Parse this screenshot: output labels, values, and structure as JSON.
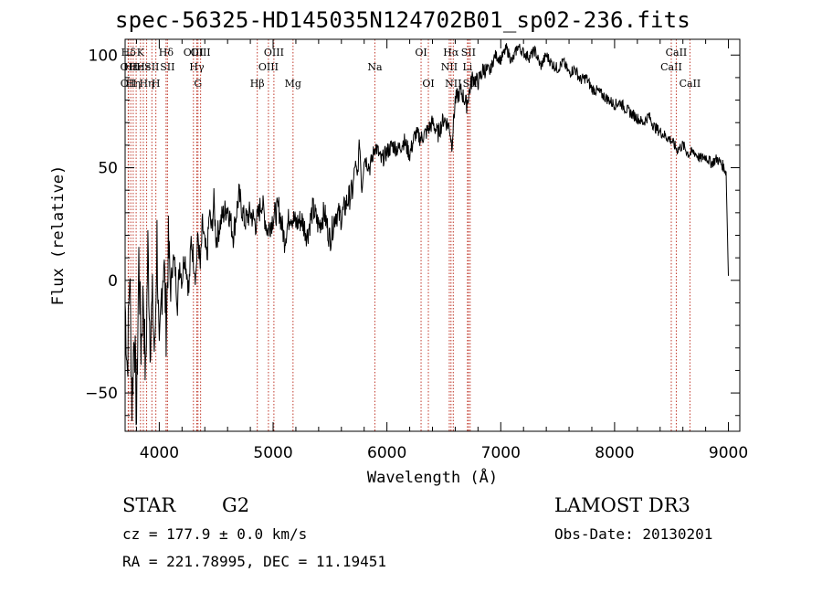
{
  "page_title": "spec-56325-HD145035N124702B01_sp02-236.fits",
  "info": {
    "object_class": "STAR",
    "subclass": "G2",
    "survey": "LAMOST DR3",
    "redshift_line": "cz = 177.9 ± 0.0 km/s",
    "obs_date_line": "Obs-Date: 20130201",
    "coords_line": "RA = 221.78995, DEC =  11.19451"
  },
  "chart_data": {
    "type": "line",
    "title": "spec-56325-HD145035N124702B01_sp02-236.fits",
    "xlabel": "Wavelength (Å)",
    "ylabel": "Flux (relative)",
    "xlim": [
      3700,
      9100
    ],
    "ylim": [
      -67,
      107
    ],
    "xticks": [
      4000,
      5000,
      6000,
      7000,
      8000,
      9000
    ],
    "yticks": [
      -50,
      0,
      50,
      100
    ],
    "series": [
      {
        "name": "spectrum",
        "x": [
          3700,
          3720,
          3740,
          3760,
          3780,
          3800,
          3820,
          3840,
          3860,
          3880,
          3900,
          3920,
          3940,
          3960,
          3980,
          4000,
          4020,
          4040,
          4060,
          4080,
          4100,
          4120,
          4140,
          4160,
          4180,
          4200,
          4220,
          4240,
          4260,
          4280,
          4300,
          4320,
          4340,
          4360,
          4380,
          4400,
          4420,
          4440,
          4460,
          4480,
          4500,
          4550,
          4600,
          4650,
          4700,
          4750,
          4800,
          4850,
          4900,
          4950,
          5000,
          5050,
          5100,
          5150,
          5200,
          5250,
          5300,
          5350,
          5400,
          5450,
          5500,
          5550,
          5600,
          5650,
          5700,
          5720,
          5740,
          5760,
          5780,
          5800,
          5850,
          5900,
          5950,
          6000,
          6050,
          6100,
          6150,
          6200,
          6250,
          6300,
          6350,
          6400,
          6450,
          6500,
          6550,
          6570,
          6600,
          6650,
          6700,
          6750,
          6800,
          6850,
          6900,
          6950,
          7000,
          7050,
          7100,
          7150,
          7200,
          7250,
          7300,
          7350,
          7400,
          7450,
          7500,
          7550,
          7600,
          7650,
          7700,
          7750,
          7800,
          7850,
          7900,
          7950,
          8000,
          8050,
          8100,
          8150,
          8200,
          8250,
          8300,
          8350,
          8400,
          8450,
          8500,
          8550,
          8600,
          8650,
          8700,
          8750,
          8800,
          8850,
          8900,
          8950,
          8980,
          9000
        ],
        "values": [
          -10,
          -40,
          5,
          -55,
          -20,
          -62,
          10,
          -30,
          -5,
          -45,
          15,
          -25,
          -10,
          -35,
          20,
          -40,
          -5,
          10,
          -20,
          15,
          -5,
          10,
          5,
          -10,
          8,
          0,
          12,
          5,
          -5,
          18,
          10,
          2,
          20,
          5,
          25,
          15,
          10,
          30,
          22,
          35,
          18,
          28,
          33,
          20,
          38,
          26,
          30,
          25,
          35,
          22,
          28,
          32,
          18,
          30,
          25,
          27,
          20,
          32,
          24,
          30,
          18,
          30,
          28,
          35,
          40,
          52,
          45,
          62,
          40,
          55,
          50,
          60,
          53,
          57,
          60,
          58,
          62,
          56,
          65,
          63,
          66,
          70,
          65,
          72,
          68,
          60,
          80,
          84,
          78,
          90,
          88,
          94,
          92,
          100,
          98,
          103,
          97,
          104,
          101,
          99,
          102,
          95,
          100,
          96,
          94,
          97,
          92,
          94,
          89,
          90,
          85,
          84,
          82,
          80,
          78,
          79,
          76,
          74,
          72,
          70,
          73,
          68,
          66,
          64,
          62,
          58,
          60,
          56,
          57,
          54,
          55,
          52,
          54,
          51,
          48,
          2
        ]
      }
    ],
    "lines": [
      {
        "label": "Hδ",
        "x": 3730,
        "row": 1
      },
      {
        "label": "OII",
        "x": 3727,
        "row": 2
      },
      {
        "label": "OII",
        "x": 3729,
        "row": 3
      },
      {
        "label": "Hε",
        "x": 3750,
        "row": 2
      },
      {
        "label": "Hη",
        "x": 3771,
        "row": 3
      },
      {
        "label": "Hε",
        "x": 3797,
        "row": 2
      },
      {
        "label": "K",
        "x": 3835,
        "row": 1
      },
      {
        "label": "Hε",
        "x": 3860,
        "row": 2
      },
      {
        "label": "Hη",
        "x": 3889,
        "row": 3
      },
      {
        "label": "SII",
        "x": 3935,
        "row": 2
      },
      {
        "label": "H",
        "x": 3970,
        "row": 3
      },
      {
        "label": "Hδ",
        "x": 4060,
        "row": 1
      },
      {
        "label": "SII",
        "x": 4072,
        "row": 2
      },
      {
        "label": "OIII",
        "x": 4300,
        "row": 1
      },
      {
        "label": "Hγ",
        "x": 4330,
        "row": 2
      },
      {
        "label": "G",
        "x": 4340,
        "row": 3
      },
      {
        "label": "OIII",
        "x": 4363,
        "row": 1
      },
      {
        "label": "Hβ",
        "x": 4861,
        "row": 3
      },
      {
        "label": "OIII",
        "x": 4959,
        "row": 2
      },
      {
        "label": "OIII",
        "x": 5007,
        "row": 1
      },
      {
        "label": "Mg",
        "x": 5175,
        "row": 3
      },
      {
        "label": "Na",
        "x": 5894,
        "row": 2
      },
      {
        "label": "OI",
        "x": 6300,
        "row": 1
      },
      {
        "label": "OI",
        "x": 6364,
        "row": 3
      },
      {
        "label": "NII",
        "x": 6548,
        "row": 2
      },
      {
        "label": "Hα",
        "x": 6563,
        "row": 1
      },
      {
        "label": "NII",
        "x": 6583,
        "row": 3
      },
      {
        "label": "SII",
        "x": 6716,
        "row": 1
      },
      {
        "label": "Li",
        "x": 6708,
        "row": 2
      },
      {
        "label": "SII",
        "x": 6731,
        "row": 3
      },
      {
        "label": "CaII",
        "x": 8498,
        "row": 2
      },
      {
        "label": "CaII",
        "x": 8542,
        "row": 1
      },
      {
        "label": "CaII",
        "x": 8662,
        "row": 3
      }
    ]
  }
}
